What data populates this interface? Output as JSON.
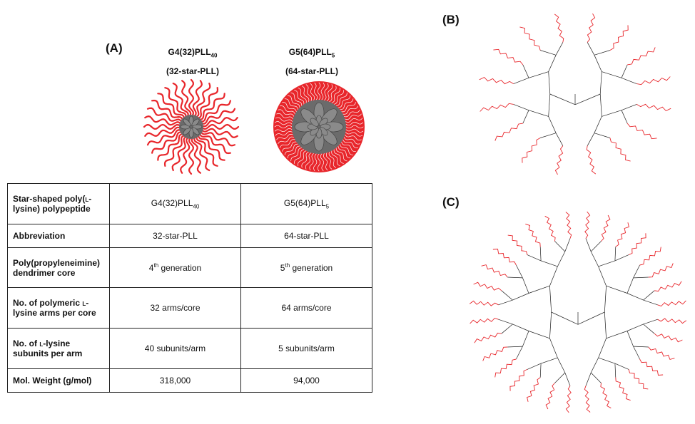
{
  "labels": {
    "a": "(A)",
    "b": "(B)",
    "c": "(C)"
  },
  "stars": [
    {
      "base": "G4(32)PLL",
      "sub": "40",
      "alias": "(32-star-PLL)"
    },
    {
      "base": "G5(64)PLL",
      "sub": "5",
      "alias": "(64-star-PLL)"
    }
  ],
  "table": {
    "rows": [
      {
        "prop_a": "Star-shaped poly(",
        "prop_sc": "l",
        "prop_b": "-lysine) polypeptide",
        "v1_base": "G4(32)PLL",
        "v1_sub": "40",
        "v2_base": "G5(64)PLL",
        "v2_sub": "5"
      },
      {
        "prop": "Abbreviation",
        "v1": "32-star-PLL",
        "v2": "64-star-PLL"
      },
      {
        "prop": "Poly(propyleneimine) dendrimer core",
        "v1_num": "4",
        "v1_sup": "th",
        "v1_rest": " generation",
        "v2_num": "5",
        "v2_sup": "th",
        "v2_rest": " generation"
      },
      {
        "prop_a": "No. of polymeric ",
        "prop_sc": "l",
        "prop_b": "-lysine arms per core",
        "v1": "32 arms/core",
        "v2": "64 arms/core"
      },
      {
        "prop_a": "No. of ",
        "prop_sc": "l",
        "prop_b": "-lysine subunits per arm",
        "v1": "40 subunits/arm",
        "v2": "5 subunits/arm"
      },
      {
        "prop": "Mol. Weight (g/mol)",
        "v1": "318,000",
        "v2": "94,000"
      }
    ]
  },
  "colors": {
    "arm": "#e8262b",
    "core": "#6b6b6b",
    "core_light": "#8a8a8a",
    "bond": "#222222",
    "label_red": "#e8262b"
  }
}
